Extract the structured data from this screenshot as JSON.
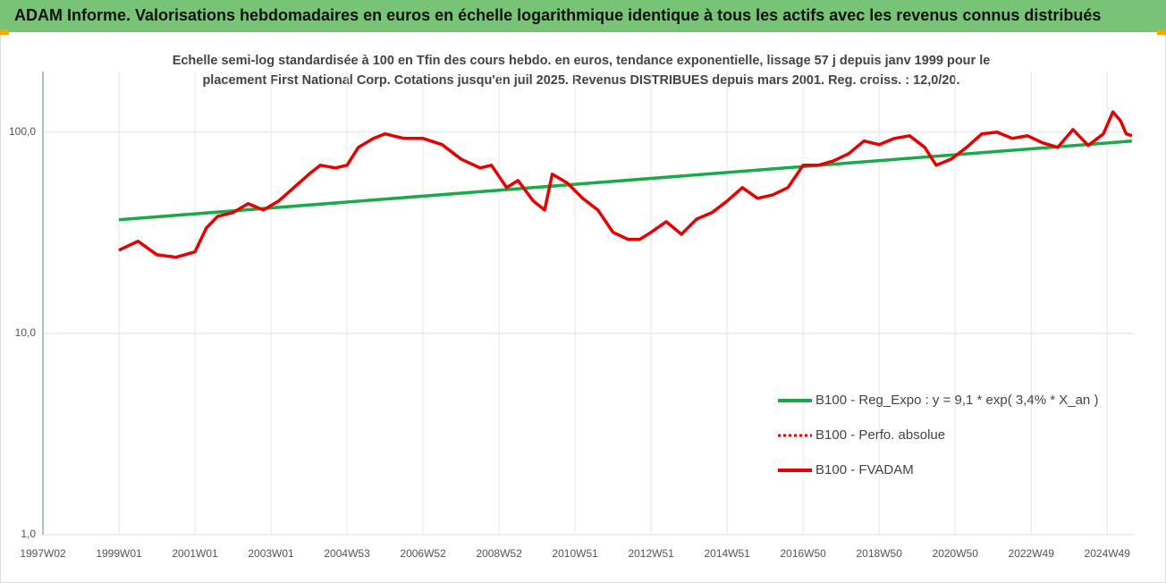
{
  "chart_data": {
    "type": "line",
    "title": "ADAM Informe. Valorisations hebdomadaires en euros en échelle logarithmique identique à tous les actifs avec les revenus connus distribués",
    "subtitle": [
      "Echelle semi-log standardisée à 100 en Tfin des cours hebdo. en euros, tendance exponentielle, lissage 57 j depuis janv 1999 pour le",
      "placement First National Corp. Cotations jusqu'en juil 2025. Revenus DISTRIBUES depuis mars 2001. Reg. croiss. : 12,0/20."
    ],
    "log_y": true,
    "grid": true,
    "legend": "lower right",
    "xlim": [
      1997.0,
      2025.7
    ],
    "ylim": [
      1,
      200
    ],
    "yticks": [
      {
        "value": 1,
        "label": "1,0"
      },
      {
        "value": 10,
        "label": "10,0"
      },
      {
        "value": 100,
        "label": "100,0"
      }
    ],
    "xticks": [
      {
        "value": 1997.0,
        "label": "1997W02"
      },
      {
        "value": 1999.0,
        "label": "1999W01"
      },
      {
        "value": 2001.0,
        "label": "2001W01"
      },
      {
        "value": 2003.0,
        "label": "2003W01"
      },
      {
        "value": 2005.0,
        "label": "2004W53"
      },
      {
        "value": 2007.0,
        "label": "2006W52"
      },
      {
        "value": 2009.0,
        "label": "2008W52"
      },
      {
        "value": 2011.0,
        "label": "2010W51"
      },
      {
        "value": 2013.0,
        "label": "2012W51"
      },
      {
        "value": 2015.0,
        "label": "2014W51"
      },
      {
        "value": 2017.0,
        "label": "2016W50"
      },
      {
        "value": 2019.0,
        "label": "2018W50"
      },
      {
        "value": 2021.0,
        "label": "2020W50"
      },
      {
        "value": 2023.0,
        "label": "2022W49"
      },
      {
        "value": 2025.0,
        "label": "2024W49"
      }
    ],
    "series": [
      {
        "name": "B100 - Reg_Expo : y = 9,1 * exp( 3,4% *  X_an )",
        "color": "#1aaa4a",
        "style": "solid",
        "x": [
          1999.0,
          2025.65
        ],
        "values": [
          36.7,
          90.3
        ]
      },
      {
        "name": "B100 - Perfo. absolue",
        "color": "#e60000",
        "style": "dotted",
        "x": [
          1999.0,
          1999.5,
          2000.0,
          2000.5,
          2001.0,
          2001.3,
          2001.6,
          2002.0,
          2002.4,
          2002.8,
          2003.2,
          2003.6,
          2004.0,
          2004.3,
          2004.7,
          2005.0,
          2005.3,
          2005.7,
          2006.0,
          2006.5,
          2007.0,
          2007.5,
          2008.0,
          2008.5,
          2008.8,
          2009.2,
          2009.5,
          2009.9,
          2010.2,
          2010.4,
          2010.8,
          2011.2,
          2011.6,
          2012.0,
          2012.4,
          2012.7,
          2013.0,
          2013.4,
          2013.8,
          2014.2,
          2014.6,
          2015.0,
          2015.4,
          2015.8,
          2016.2,
          2016.6,
          2017.0,
          2017.4,
          2017.8,
          2018.2,
          2018.6,
          2019.0,
          2019.4,
          2019.8,
          2020.2,
          2020.5,
          2020.9,
          2021.3,
          2021.7,
          2022.1,
          2022.5,
          2022.9,
          2023.3,
          2023.7,
          2024.1,
          2024.5,
          2024.9,
          2025.15,
          2025.35,
          2025.5,
          2025.65
        ],
        "values": [
          25.9,
          28.7,
          24.6,
          23.9,
          25.4,
          33.4,
          38.2,
          39.8,
          44.1,
          41.0,
          45.5,
          53.0,
          61.8,
          68.5,
          66.4,
          68.5,
          84.0,
          93.1,
          98,
          93.1,
          93.1,
          86.7,
          73.5,
          66.4,
          68.5,
          53.0,
          57.5,
          45.5,
          41,
          61.8,
          55.8,
          46.9,
          41,
          31.8,
          29.3,
          29.3,
          31.8,
          35.9,
          31.1,
          37,
          39.8,
          45.5,
          53,
          46.9,
          48.8,
          53,
          68.5,
          68.5,
          72,
          78.2,
          90.3,
          86.7,
          93.1,
          96,
          84,
          68.5,
          73.5,
          84,
          98,
          100,
          93.1,
          96,
          88.5,
          84,
          103,
          85.8,
          98,
          126,
          114,
          98,
          96
        ]
      },
      {
        "name": "B100 - FVADAM",
        "color": "#e60000",
        "style": "solid",
        "x": [
          1999.0,
          1999.5,
          2000.0,
          2000.5,
          2001.0,
          2001.3,
          2001.6,
          2002.0,
          2002.4,
          2002.8,
          2003.2,
          2003.6,
          2004.0,
          2004.3,
          2004.7,
          2005.0,
          2005.3,
          2005.7,
          2006.0,
          2006.5,
          2007.0,
          2007.5,
          2008.0,
          2008.5,
          2008.8,
          2009.2,
          2009.5,
          2009.9,
          2010.2,
          2010.4,
          2010.8,
          2011.2,
          2011.6,
          2012.0,
          2012.4,
          2012.7,
          2013.0,
          2013.4,
          2013.8,
          2014.2,
          2014.6,
          2015.0,
          2015.4,
          2015.8,
          2016.2,
          2016.6,
          2017.0,
          2017.4,
          2017.8,
          2018.2,
          2018.6,
          2019.0,
          2019.4,
          2019.8,
          2020.2,
          2020.5,
          2020.9,
          2021.3,
          2021.7,
          2022.1,
          2022.5,
          2022.9,
          2023.3,
          2023.7,
          2024.1,
          2024.5,
          2024.9,
          2025.15,
          2025.35,
          2025.5,
          2025.65
        ],
        "values": [
          25.9,
          28.7,
          24.6,
          23.9,
          25.4,
          33.4,
          38.2,
          39.8,
          44.1,
          41.0,
          45.5,
          53.0,
          61.8,
          68.5,
          66.4,
          68.5,
          84.0,
          93.1,
          98,
          93.1,
          93.1,
          86.7,
          73.5,
          66.4,
          68.5,
          53.0,
          57.5,
          45.5,
          41,
          61.8,
          55.8,
          46.9,
          41,
          31.8,
          29.3,
          29.3,
          31.8,
          35.9,
          31.1,
          37,
          39.8,
          45.5,
          53,
          46.9,
          48.8,
          53,
          68.5,
          68.5,
          72,
          78.2,
          90.3,
          86.7,
          93.1,
          96,
          84,
          68.5,
          73.5,
          84,
          98,
          100,
          93.1,
          96,
          88.5,
          84,
          103,
          85.8,
          98,
          126,
          114,
          98,
          96
        ]
      }
    ]
  }
}
